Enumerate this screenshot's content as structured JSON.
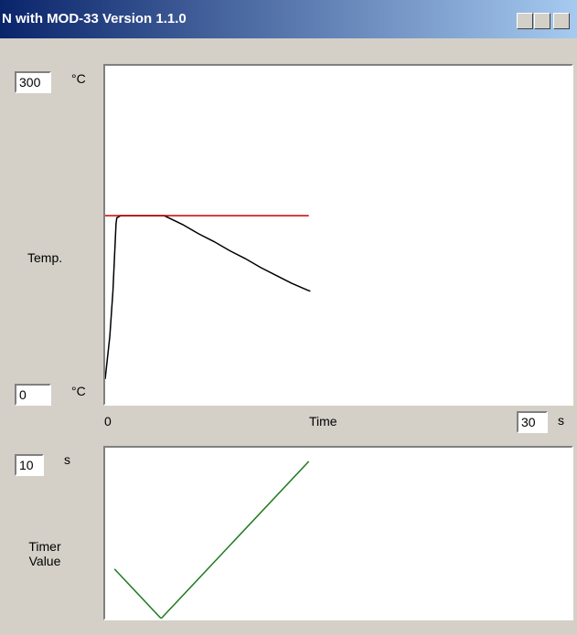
{
  "window": {
    "title": "N with MOD-33 Version 1.1.0"
  },
  "chart_data": [
    {
      "type": "line",
      "ylabel": "Temp.",
      "xlabel": "Time",
      "y_unit": "°C",
      "x_unit": "s",
      "xlim": [
        0,
        30
      ],
      "ylim": [
        0,
        300
      ],
      "series": [
        {
          "color": "#000000",
          "x": [
            0,
            0.3,
            0.5,
            0.6,
            0.7,
            0.75,
            1,
            3.8,
            5,
            6,
            7,
            8,
            9,
            10,
            11,
            12,
            13,
            13.2
          ],
          "values": [
            22,
            60,
            100,
            130,
            160,
            165,
            167,
            167,
            159,
            151,
            144,
            136,
            129,
            121,
            114,
            107,
            101,
            100
          ]
        },
        {
          "color": "#cc0000",
          "x": [
            0,
            13.1
          ],
          "values": [
            167,
            167
          ]
        }
      ]
    },
    {
      "type": "line",
      "ylabel": "Timer Value",
      "y_unit": "s",
      "xlim": [
        0,
        30
      ],
      "ylim": [
        0,
        10
      ],
      "series": [
        {
          "color": "#1e7a1e",
          "x": [
            0.6,
            3.6,
            13.1
          ],
          "values": [
            2.9,
            0,
            9.2
          ]
        }
      ]
    }
  ]
}
